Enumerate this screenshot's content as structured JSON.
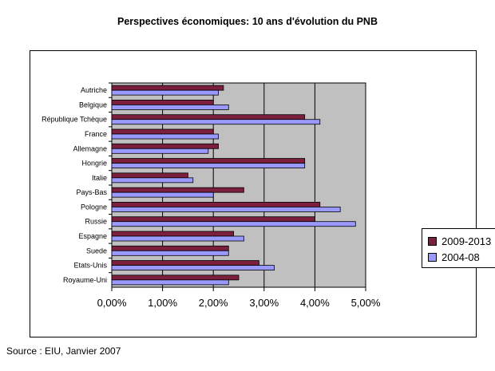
{
  "chart_data": {
    "type": "bar",
    "orientation": "horizontal",
    "title": "Perspectives économiques: 10 ans d'évolution du PNB",
    "categories": [
      "Autriche",
      "Belgique",
      "République Tchèque",
      "France",
      "Allemagne",
      "Hongrie",
      "Italie",
      "Pays-Bas",
      "Pologne",
      "Russie",
      "Espagne",
      "Suede",
      "Etats-Unis",
      "Royaume-Uni"
    ],
    "series": [
      {
        "name": "2009-2013",
        "color": "#7b1f3d",
        "values": [
          2.2,
          2.0,
          3.8,
          2.0,
          2.1,
          3.8,
          1.5,
          2.6,
          4.1,
          4.0,
          2.4,
          2.3,
          2.9,
          2.5
        ]
      },
      {
        "name": "2004-08",
        "color": "#9999ff",
        "values": [
          2.1,
          2.3,
          4.1,
          2.1,
          1.9,
          3.8,
          1.6,
          2.0,
          4.5,
          4.8,
          2.6,
          2.3,
          3.2,
          2.3
        ]
      }
    ],
    "xlim": [
      0,
      5
    ],
    "xticks": [
      "0,00%",
      "1,00%",
      "2,00%",
      "3,00%",
      "4,00%",
      "5,00%"
    ],
    "grid": true,
    "plot_background": "#c0c0c0",
    "legend_position": "right"
  },
  "source": "Source : EIU, Janvier 2007"
}
